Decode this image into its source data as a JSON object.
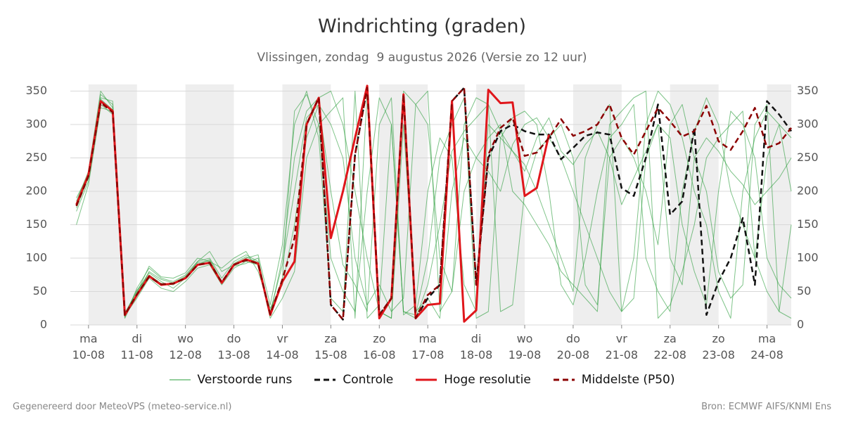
{
  "chart_data": {
    "type": "line",
    "title": "Windrichting (graden)",
    "subtitle": "Vlissingen, zondag  9 augustus 2026 (Versie zo 12 uur)",
    "footer_left": "Gegenereerd door MeteoVPS (meteo-service.nl)",
    "footer_right": "Bron: ECMWF AIFS/KNMI Ens",
    "x": [
      -6,
      0,
      6,
      12,
      18,
      24,
      30,
      36,
      42,
      48,
      54,
      60,
      66,
      72,
      78,
      84,
      90,
      96,
      102,
      108,
      114,
      120,
      126,
      132,
      138,
      144,
      150,
      156,
      162,
      168,
      174,
      180,
      186,
      192,
      198,
      204,
      210,
      216,
      222,
      228,
      234,
      240,
      246,
      252,
      258,
      264,
      270,
      276,
      282,
      288,
      294,
      300,
      306,
      312,
      318,
      324,
      330,
      336,
      342,
      348
    ],
    "xlim": [
      -9,
      348
    ],
    "xticks": [
      {
        "value": 0,
        "label": "ma\n10-08"
      },
      {
        "value": 24,
        "label": "di\n11-08"
      },
      {
        "value": 48,
        "label": "wo\n12-08"
      },
      {
        "value": 72,
        "label": "do\n13-08"
      },
      {
        "value": 96,
        "label": "vr\n14-08"
      },
      {
        "value": 120,
        "label": "za\n15-08"
      },
      {
        "value": 144,
        "label": "zo\n16-08"
      },
      {
        "value": 168,
        "label": "ma\n17-08"
      },
      {
        "value": 192,
        "label": "di\n18-08"
      },
      {
        "value": 216,
        "label": "wo\n19-08"
      },
      {
        "value": 240,
        "label": "do\n20-08"
      },
      {
        "value": 264,
        "label": "vr\n21-08"
      },
      {
        "value": 288,
        "label": "za\n22-08"
      },
      {
        "value": 312,
        "label": "zo\n23-08"
      },
      {
        "value": 336,
        "label": "ma\n24-08"
      }
    ],
    "ylim": [
      0,
      360
    ],
    "yticks": [
      0,
      50,
      100,
      150,
      200,
      250,
      300,
      350
    ],
    "y2lim": [
      0,
      360
    ],
    "y2ticks": [
      0,
      50,
      100,
      150,
      200,
      250,
      300,
      350
    ],
    "grid": true,
    "series": [
      {
        "name": "Verstoorde runs",
        "color": "#2a9d3a",
        "members": [
          [
            175,
            220,
            345,
            330,
            12,
            55,
            85,
            70,
            65,
            75,
            95,
            100,
            70,
            95,
            105,
            95,
            20,
            90,
            200,
            310,
            330,
            200,
            90,
            60,
            20,
            300,
            340,
            15,
            30,
            200,
            280,
            250,
            60,
            20,
            300,
            280,
            260,
            240,
            200,
            150,
            100,
            50,
            250,
            300,
            330,
            20,
            40,
            250,
            300,
            280,
            150,
            80,
            30,
            200,
            320,
            300,
            250,
            100,
            60,
            40
          ],
          [
            185,
            230,
            350,
            325,
            18,
            50,
            78,
            65,
            55,
            70,
            95,
            110,
            80,
            90,
            100,
            105,
            30,
            120,
            300,
            350,
            280,
            40,
            20,
            350,
            10,
            30,
            300,
            20,
            15,
            100,
            250,
            300,
            340,
            10,
            20,
            280,
            310,
            320,
            300,
            200,
            60,
            30,
            100,
            200,
            280,
            300,
            330,
            100,
            50,
            20,
            200,
            290,
            340,
            300,
            200,
            150,
            100,
            250,
            300,
            200
          ],
          [
            170,
            215,
            330,
            315,
            14,
            40,
            70,
            55,
            50,
            65,
            85,
            90,
            60,
            85,
            95,
            90,
            10,
            40,
            80,
            250,
            300,
            320,
            340,
            10,
            350,
            20,
            10,
            300,
            20,
            40,
            10,
            200,
            280,
            250,
            230,
            200,
            270,
            300,
            310,
            280,
            250,
            200,
            150,
            100,
            50,
            20,
            100,
            300,
            350,
            330,
            280,
            200,
            150,
            50,
            10,
            200,
            280,
            320,
            300,
            280
          ],
          [
            190,
            225,
            340,
            335,
            10,
            48,
            88,
            72,
            70,
            78,
            100,
            95,
            85,
            100,
            110,
            80,
            25,
            60,
            150,
            280,
            330,
            300,
            250,
            100,
            30,
            60,
            20,
            40,
            330,
            350,
            20,
            50,
            200,
            250,
            280,
            300,
            200,
            180,
            150,
            120,
            80,
            60,
            40,
            20,
            300,
            320,
            340,
            350,
            10,
            30,
            80,
            150,
            250,
            280,
            300,
            320,
            100,
            50,
            20,
            10
          ],
          [
            150,
            210,
            325,
            320,
            16,
            52,
            75,
            62,
            60,
            72,
            90,
            98,
            65,
            88,
            92,
            100,
            15,
            100,
            250,
            320,
            340,
            350,
            300,
            200,
            100,
            20,
            10,
            350,
            330,
            300,
            100,
            50,
            300,
            340,
            330,
            290,
            260,
            230,
            280,
            310,
            260,
            240,
            270,
            290,
            250,
            180,
            220,
            260,
            300,
            100,
            60,
            250,
            280,
            260,
            230,
            210,
            180,
            200,
            220,
            250
          ],
          [
            180,
            228,
            338,
            322,
            13,
            46,
            80,
            68,
            63,
            73,
            93,
            96,
            62,
            92,
            102,
            93,
            18,
            70,
            320,
            345,
            300,
            100,
            50,
            20,
            200,
            340,
            300,
            20,
            10,
            60,
            150,
            260,
            290,
            310,
            330,
            20,
            30,
            200,
            260,
            280,
            300,
            250,
            60,
            30,
            250,
            280,
            250,
            200,
            120,
            300,
            330,
            250,
            200,
            80,
            40,
            60,
            300,
            330,
            20,
            150
          ]
        ]
      },
      {
        "name": "Controle",
        "color": "#111111",
        "dashed": true,
        "values": [
          180,
          225,
          335,
          320,
          15,
          45,
          73,
          60,
          62,
          70,
          90,
          93,
          63,
          90,
          98,
          92,
          15,
          65,
          95,
          300,
          340,
          30,
          8,
          255,
          355,
          15,
          40,
          345,
          10,
          40,
          60,
          335,
          355,
          60,
          250,
          290,
          300,
          290,
          285,
          285,
          248,
          265,
          283,
          288,
          285,
          205,
          193,
          250,
          330,
          165,
          185,
          295,
          15,
          65,
          100,
          160,
          60,
          335,
          315,
          290
        ]
      },
      {
        "name": "Hoge resolutie",
        "color": "#e0161b",
        "values": [
          180,
          225,
          335,
          320,
          15,
          45,
          73,
          60,
          62,
          70,
          90,
          93,
          63,
          90,
          98,
          92,
          15,
          65,
          95,
          300,
          340,
          130,
          200,
          280,
          358,
          10,
          40,
          345,
          10,
          30,
          32,
          335,
          5,
          22,
          352,
          332,
          333,
          193,
          205,
          285,
          null,
          null,
          null,
          null,
          null,
          null,
          null,
          null,
          null,
          null,
          null,
          null,
          null,
          null,
          null,
          null,
          null,
          null,
          null,
          null
        ]
      },
      {
        "name": "Middelste (P50)",
        "color": "#8b0000",
        "dashed": true,
        "values": [
          178,
          223,
          333,
          318,
          15,
          46,
          72,
          61,
          62,
          70,
          90,
          93,
          64,
          90,
          97,
          92,
          16,
          68,
          130,
          300,
          340,
          30,
          8,
          255,
          355,
          15,
          40,
          345,
          10,
          45,
          60,
          335,
          355,
          60,
          255,
          295,
          310,
          253,
          258,
          280,
          308,
          283,
          290,
          300,
          330,
          280,
          255,
          290,
          325,
          305,
          282,
          290,
          328,
          275,
          262,
          290,
          325,
          265,
          272,
          295
        ]
      }
    ]
  }
}
